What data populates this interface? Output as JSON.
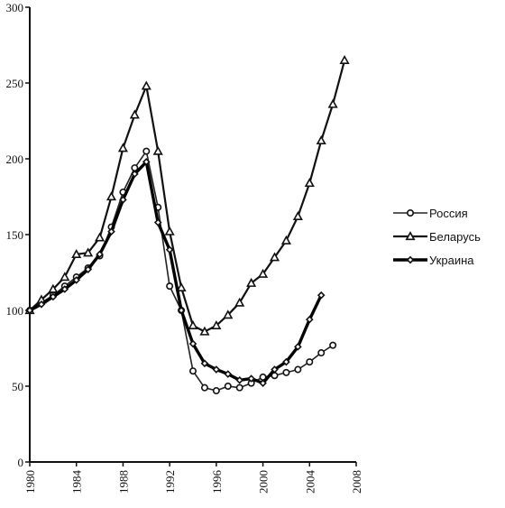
{
  "chart_data": {
    "type": "line",
    "title": "",
    "xlabel": "",
    "ylabel": "",
    "xlim": [
      1980,
      2008
    ],
    "ylim": [
      0,
      300
    ],
    "x_ticks": [
      1980,
      1984,
      1988,
      1992,
      1996,
      2000,
      2004,
      2008
    ],
    "y_ticks": [
      0,
      50,
      100,
      150,
      200,
      250,
      300
    ],
    "x_tick_labels": [
      "1980",
      "1984",
      "1988",
      "1992",
      "1996",
      "2000",
      "2004",
      "2008"
    ],
    "y_tick_labels": [
      "0",
      "50",
      "100",
      "150",
      "200",
      "250",
      "300"
    ],
    "grid": false,
    "legend_position": "right",
    "series": [
      {
        "name": "Россия",
        "marker": "circle",
        "line": "thin",
        "color": "#222222",
        "x": [
          1980,
          1981,
          1982,
          1983,
          1984,
          1985,
          1986,
          1987,
          1988,
          1989,
          1990,
          1991,
          1992,
          1993,
          1994,
          1995,
          1996,
          1997,
          1998,
          1999,
          2000,
          2001,
          2002,
          2003,
          2004,
          2005,
          2006
        ],
        "values": [
          100,
          105,
          110,
          116,
          122,
          128,
          136,
          155,
          178,
          194,
          205,
          168,
          116,
          100,
          60,
          49,
          47,
          50,
          49,
          52,
          56,
          57,
          59,
          61,
          66,
          72,
          77
        ]
      },
      {
        "name": "Беларусь",
        "marker": "triangle",
        "line": "medium",
        "color": "#111111",
        "x": [
          1980,
          1981,
          1982,
          1983,
          1984,
          1985,
          1986,
          1987,
          1988,
          1989,
          1990,
          1991,
          1992,
          1993,
          1994,
          1995,
          1996,
          1997,
          1998,
          1999,
          2000,
          2001,
          2002,
          2003,
          2004,
          2005,
          2006,
          2007
        ],
        "values": [
          100,
          107,
          114,
          122,
          137,
          138,
          148,
          175,
          207,
          229,
          248,
          205,
          152,
          115,
          90,
          86,
          90,
          97,
          105,
          118,
          124,
          135,
          146,
          162,
          184,
          212,
          236,
          265
        ]
      },
      {
        "name": "Украина",
        "marker": "diamond",
        "line": "thick",
        "color": "#000000",
        "x": [
          1980,
          1981,
          1982,
          1983,
          1984,
          1985,
          1986,
          1987,
          1988,
          1989,
          1990,
          1991,
          1992,
          1993,
          1994,
          1995,
          1996,
          1997,
          1998,
          1999,
          2000,
          2001,
          2002,
          2003,
          2004,
          2005
        ],
        "values": [
          100,
          104,
          109,
          114,
          120,
          127,
          137,
          152,
          173,
          190,
          198,
          158,
          140,
          100,
          78,
          65,
          61,
          58,
          54,
          55,
          52,
          61,
          66,
          76,
          94,
          110
        ]
      }
    ]
  }
}
